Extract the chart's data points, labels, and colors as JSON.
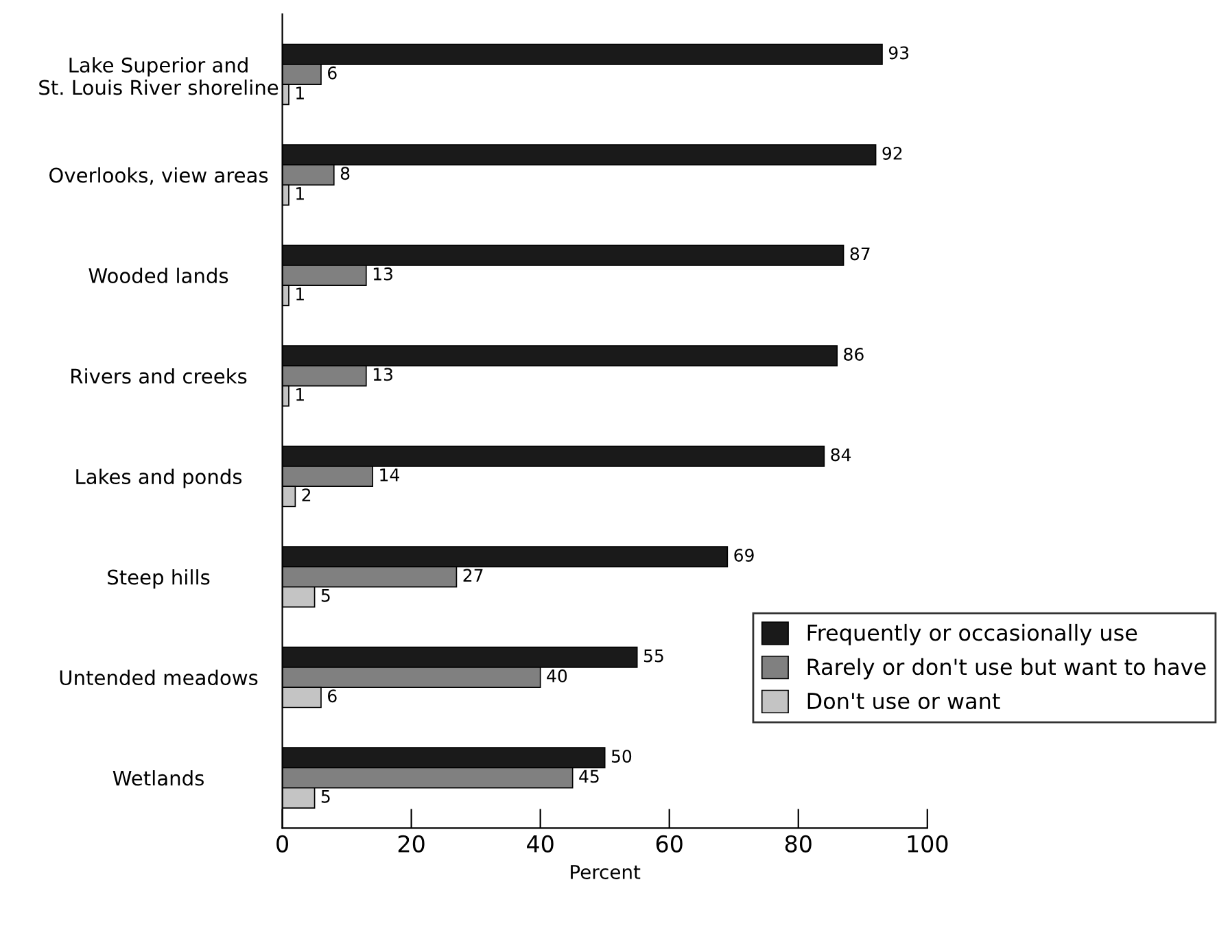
{
  "chart_data": {
    "type": "bar",
    "orientation": "horizontal",
    "xlabel": "Percent",
    "categories": [
      "Lake Superior and\nSt. Louis River shoreline",
      "Overlooks, view areas",
      "Wooded lands",
      "Rivers and creeks",
      "Lakes and ponds",
      "Steep hills",
      "Untended meadows",
      "Wetlands"
    ],
    "series": [
      {
        "name": "Frequently or occasionally use",
        "color": "#1a1a1a",
        "values": [
          93,
          92,
          87,
          86,
          84,
          69,
          55,
          50
        ]
      },
      {
        "name": "Rarely or don't use but want to have",
        "color": "#808080",
        "values": [
          6,
          8,
          13,
          13,
          14,
          27,
          40,
          45
        ]
      },
      {
        "name": "Don't use or want",
        "color": "#c4c4c4",
        "values": [
          1,
          1,
          1,
          1,
          2,
          5,
          6,
          5
        ]
      }
    ],
    "xlim": [
      0,
      100
    ],
    "xticks": [
      0,
      20,
      40,
      60,
      80,
      100
    ],
    "data_labels": true,
    "grid": false,
    "legend": "bottom right"
  }
}
